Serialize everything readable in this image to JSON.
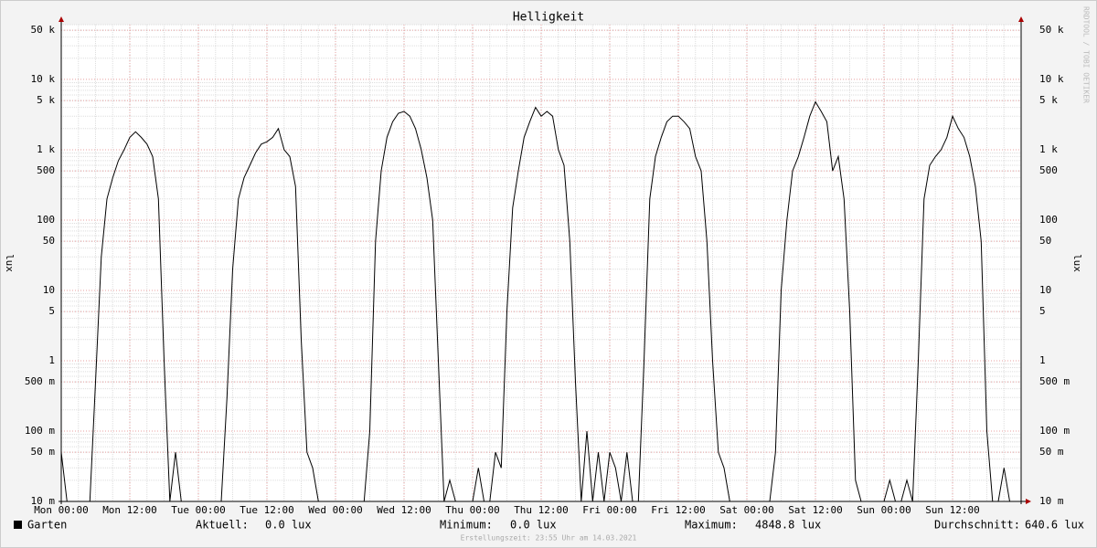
{
  "chart_data": {
    "type": "line",
    "title": "Helligkeit",
    "y_label": "lux",
    "y2_label": "lux",
    "log_scale": true,
    "grid": true,
    "xlim": [
      0,
      168
    ],
    "ylim": [
      0.01,
      60000
    ],
    "xticks": [
      {
        "value": 0,
        "label": "Mon 00:00"
      },
      {
        "value": 12,
        "label": "Mon 12:00"
      },
      {
        "value": 24,
        "label": "Tue 00:00"
      },
      {
        "value": 36,
        "label": "Tue 12:00"
      },
      {
        "value": 48,
        "label": "Wed 00:00"
      },
      {
        "value": 60,
        "label": "Wed 12:00"
      },
      {
        "value": 72,
        "label": "Thu 00:00"
      },
      {
        "value": 84,
        "label": "Thu 12:00"
      },
      {
        "value": 96,
        "label": "Fri 00:00"
      },
      {
        "value": 108,
        "label": "Fri 12:00"
      },
      {
        "value": 120,
        "label": "Sat 00:00"
      },
      {
        "value": 132,
        "label": "Sat 12:00"
      },
      {
        "value": 144,
        "label": "Sun 00:00"
      },
      {
        "value": 156,
        "label": "Sun 12:00"
      }
    ],
    "yticks": [
      {
        "value": 50000,
        "label": "50 k"
      },
      {
        "value": 10000,
        "label": "10 k"
      },
      {
        "value": 5000,
        "label": "5 k"
      },
      {
        "value": 1000,
        "label": "1 k"
      },
      500,
      100,
      50,
      10,
      5,
      1,
      {
        "value": 0.5,
        "label": "500 m"
      },
      {
        "value": 0.1,
        "label": "100 m"
      },
      {
        "value": 0.05,
        "label": "50 m"
      },
      {
        "value": 0.01,
        "label": "10 m"
      }
    ],
    "x": [
      0,
      1,
      2,
      3,
      4,
      5,
      6,
      7,
      8,
      9,
      10,
      11,
      12,
      13,
      14,
      15,
      16,
      17,
      18,
      19,
      20,
      21,
      22,
      23,
      24,
      25,
      26,
      27,
      28,
      29,
      30,
      31,
      32,
      33,
      34,
      35,
      36,
      37,
      38,
      39,
      40,
      41,
      42,
      43,
      44,
      45,
      46,
      47,
      48,
      49,
      50,
      51,
      52,
      53,
      54,
      55,
      56,
      57,
      58,
      59,
      60,
      61,
      62,
      63,
      64,
      65,
      66,
      67,
      68,
      69,
      70,
      71,
      72,
      73,
      74,
      75,
      76,
      77,
      78,
      79,
      80,
      81,
      82,
      83,
      84,
      85,
      86,
      87,
      88,
      89,
      90,
      91,
      92,
      93,
      94,
      95,
      96,
      97,
      98,
      99,
      100,
      101,
      102,
      103,
      104,
      105,
      106,
      107,
      108,
      109,
      110,
      111,
      112,
      113,
      114,
      115,
      116,
      117,
      118,
      119,
      120,
      121,
      122,
      123,
      124,
      125,
      126,
      127,
      128,
      129,
      130,
      131,
      132,
      133,
      134,
      135,
      136,
      137,
      138,
      139,
      140,
      141,
      142,
      143,
      144,
      145,
      146,
      147,
      148,
      149,
      150,
      151,
      152,
      153,
      154,
      155,
      156,
      157,
      158,
      159,
      160,
      161,
      162,
      163,
      164,
      165,
      166,
      167,
      168
    ],
    "series": [
      {
        "name": "Garten",
        "color": "#000000",
        "values": [
          0.05,
          0,
          0,
          0,
          0,
          0,
          0.5,
          30,
          200,
          400,
          700,
          1000,
          1500,
          1800,
          1500,
          1200,
          800,
          200,
          1,
          0,
          0.05,
          0,
          0,
          0,
          0,
          0,
          0,
          0,
          0,
          0.3,
          20,
          200,
          400,
          600,
          900,
          1200,
          1300,
          1500,
          2000,
          1000,
          800,
          300,
          2,
          0.05,
          0.03,
          0,
          0,
          0,
          0,
          0,
          0,
          0,
          0,
          0,
          0.1,
          50,
          500,
          1500,
          2500,
          3300,
          3500,
          3000,
          2000,
          1000,
          400,
          100,
          1,
          0,
          0.02,
          0,
          0,
          0,
          0,
          0.03,
          0,
          0,
          0.05,
          0.03,
          5,
          150,
          500,
          1500,
          2500,
          4000,
          3000,
          3500,
          3000,
          1000,
          600,
          50,
          0.5,
          0,
          0.1,
          0,
          0.05,
          0,
          0.05,
          0.03,
          0,
          0.05,
          0,
          0,
          1,
          200,
          800,
          1500,
          2500,
          3000,
          3000,
          2500,
          2000,
          800,
          500,
          50,
          1,
          0.05,
          0.03,
          0,
          0,
          0,
          0,
          0,
          0,
          0,
          0,
          0.05,
          10,
          100,
          500,
          800,
          1500,
          3000,
          4800,
          3500,
          2500,
          500,
          800,
          200,
          5,
          0.02,
          0,
          0,
          0,
          0,
          0,
          0.02,
          0,
          0,
          0.02,
          0,
          1,
          200,
          600,
          800,
          1000,
          1500,
          3000,
          2000,
          1500,
          800,
          300,
          50,
          0.1,
          0,
          0,
          0.03,
          0,
          0,
          0
        ]
      }
    ],
    "legend_stats": [
      {
        "label": "Aktuell:",
        "value": "0.0 lux"
      },
      {
        "label": "Minimum:",
        "value": "0.0 lux"
      },
      {
        "label": "Maximum:",
        "value": "4848.8 lux"
      },
      {
        "label": "Durchschnitt:",
        "value": "640.6 lux"
      }
    ],
    "footer": "Erstellungszeit: 23:55 Uhr am 14.03.2021",
    "watermark": "RRDTOOL / TOBI OETIKER"
  }
}
